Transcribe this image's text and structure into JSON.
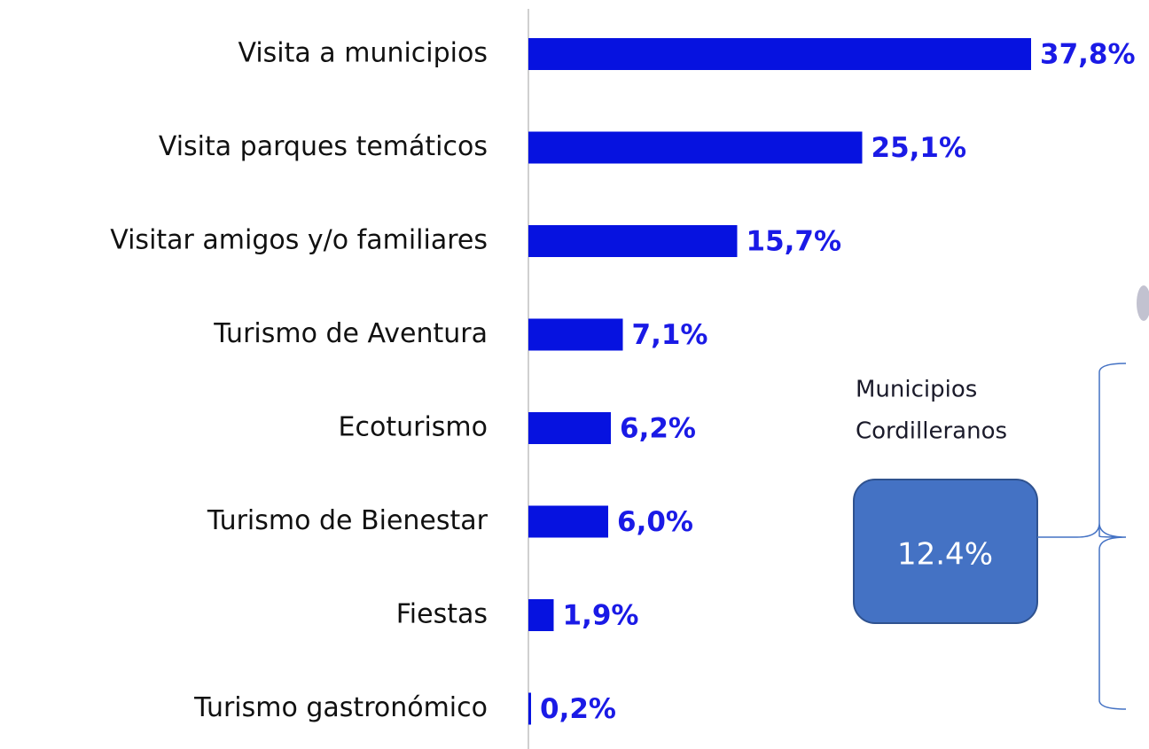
{
  "chart_data": {
    "type": "barh",
    "categories": [
      "Visita a municipios",
      "Visita parques temáticos",
      "Visitar amigos y/o familiares",
      "Turismo de Aventura",
      "Ecoturismo",
      "Turismo de Bienestar",
      "Fiestas",
      "Turismo gastronómico"
    ],
    "values": [
      37.8,
      25.1,
      15.7,
      7.1,
      6.2,
      6.0,
      1.9,
      0.2
    ],
    "value_labels": [
      "37,8%",
      "25,1%",
      "15,7%",
      "7,1%",
      "6,2%",
      "6,0%",
      "1,9%",
      "0,2%"
    ],
    "color": "#0612e0",
    "xlim": [
      0,
      40
    ],
    "annotation": {
      "lines": [
        "Municipios",
        "Cordilleranos"
      ],
      "box_text": "12.4%"
    }
  }
}
